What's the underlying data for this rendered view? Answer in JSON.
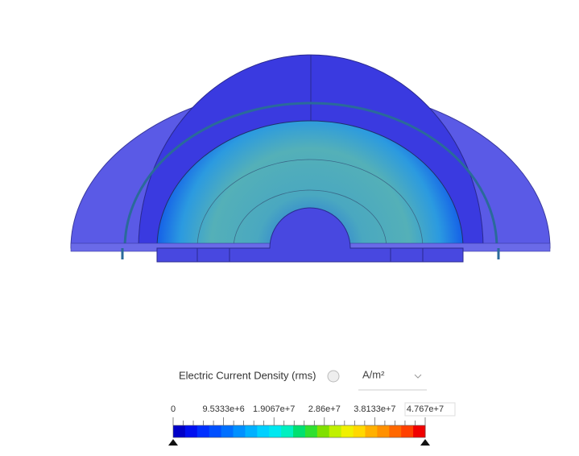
{
  "legend": {
    "title": "Electric Current Density (rms)",
    "unit": "A/m²",
    "ticks": [
      "0",
      "9.5333e+6",
      "1.9067e+7",
      "2.86e+7",
      "3.8133e+7",
      "4.767e+7"
    ],
    "colors": [
      "#0000c8",
      "#0010f0",
      "#0030ff",
      "#0050ff",
      "#0070ff",
      "#0090ff",
      "#00b0ff",
      "#00d0ff",
      "#00e8f0",
      "#00f0c0",
      "#00e070",
      "#30e030",
      "#80e000",
      "#c0f000",
      "#f0f000",
      "#ffd800",
      "#ffb000",
      "#ff9000",
      "#ff6800",
      "#ff4000",
      "#f00000"
    ]
  }
}
